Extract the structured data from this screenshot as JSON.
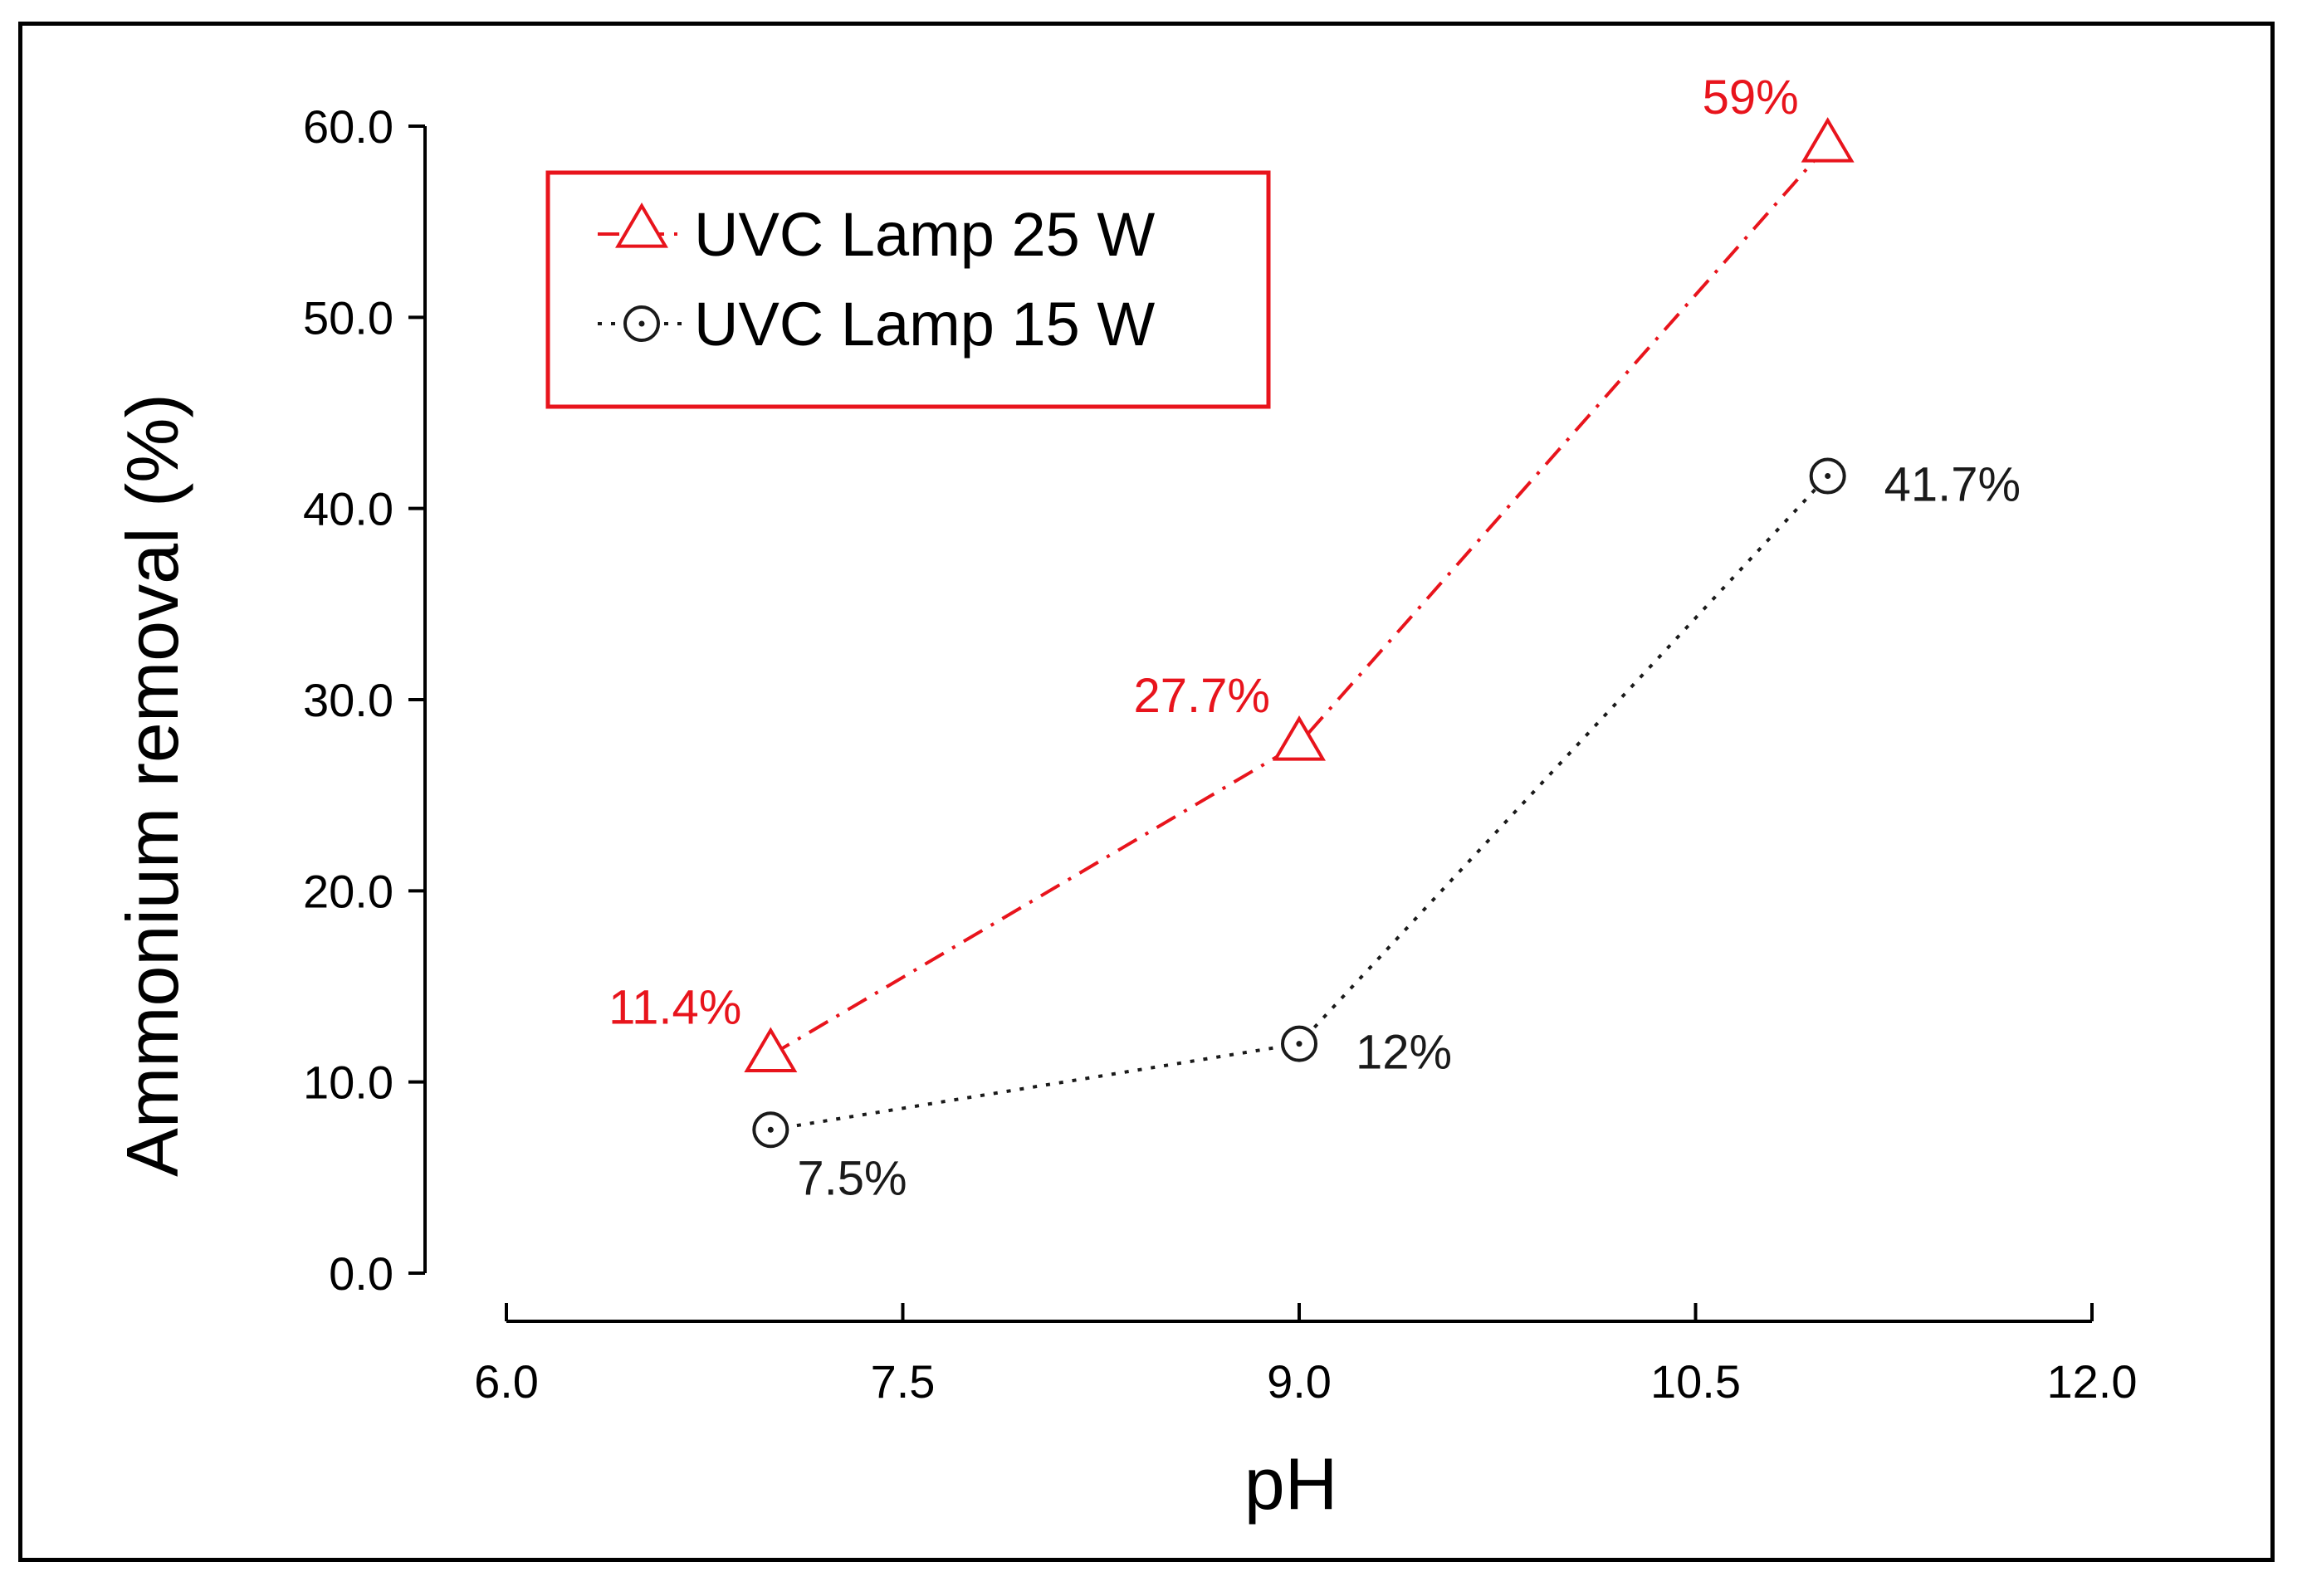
{
  "chart_data": {
    "type": "line",
    "title": "",
    "xlabel": "pH",
    "ylabel": "Ammonium removal (%)",
    "xlim": [
      6.0,
      12.0
    ],
    "ylim": [
      0.0,
      60.0
    ],
    "x_ticks": [
      6.0,
      7.5,
      9.0,
      10.5,
      12.0
    ],
    "x_tick_labels": [
      "6.0",
      "7.5",
      "9.0",
      "10.5",
      "12.0"
    ],
    "y_ticks": [
      0.0,
      10.0,
      20.0,
      30.0,
      40.0,
      50.0,
      60.0
    ],
    "y_tick_labels": [
      "0.0",
      "10.0",
      "20.0",
      "30.0",
      "40.0",
      "50.0",
      "60.0"
    ],
    "grid": false,
    "legend_position": "top-left",
    "series": [
      {
        "name": "UVC Lamp 25 W",
        "color": "#e8141c",
        "marker": "triangle",
        "line_style": "dash-dot",
        "x": [
          7,
          9,
          11
        ],
        "y": [
          11.4,
          27.7,
          59
        ],
        "labels": [
          "11.4%",
          "27.7%",
          "59%"
        ],
        "label_placement": [
          "left",
          "left",
          "left"
        ]
      },
      {
        "name": "UVC Lamp 15 W",
        "color": "#1a1a1a",
        "marker": "circle-dot",
        "line_style": "dotted",
        "x": [
          7,
          9,
          11
        ],
        "y": [
          7.5,
          12,
          41.7
        ],
        "labels": [
          "7.5%",
          "12%",
          "41.7%"
        ],
        "label_placement": [
          "below-right",
          "right",
          "right"
        ]
      }
    ],
    "legend_frame_color": "#e8141c"
  }
}
